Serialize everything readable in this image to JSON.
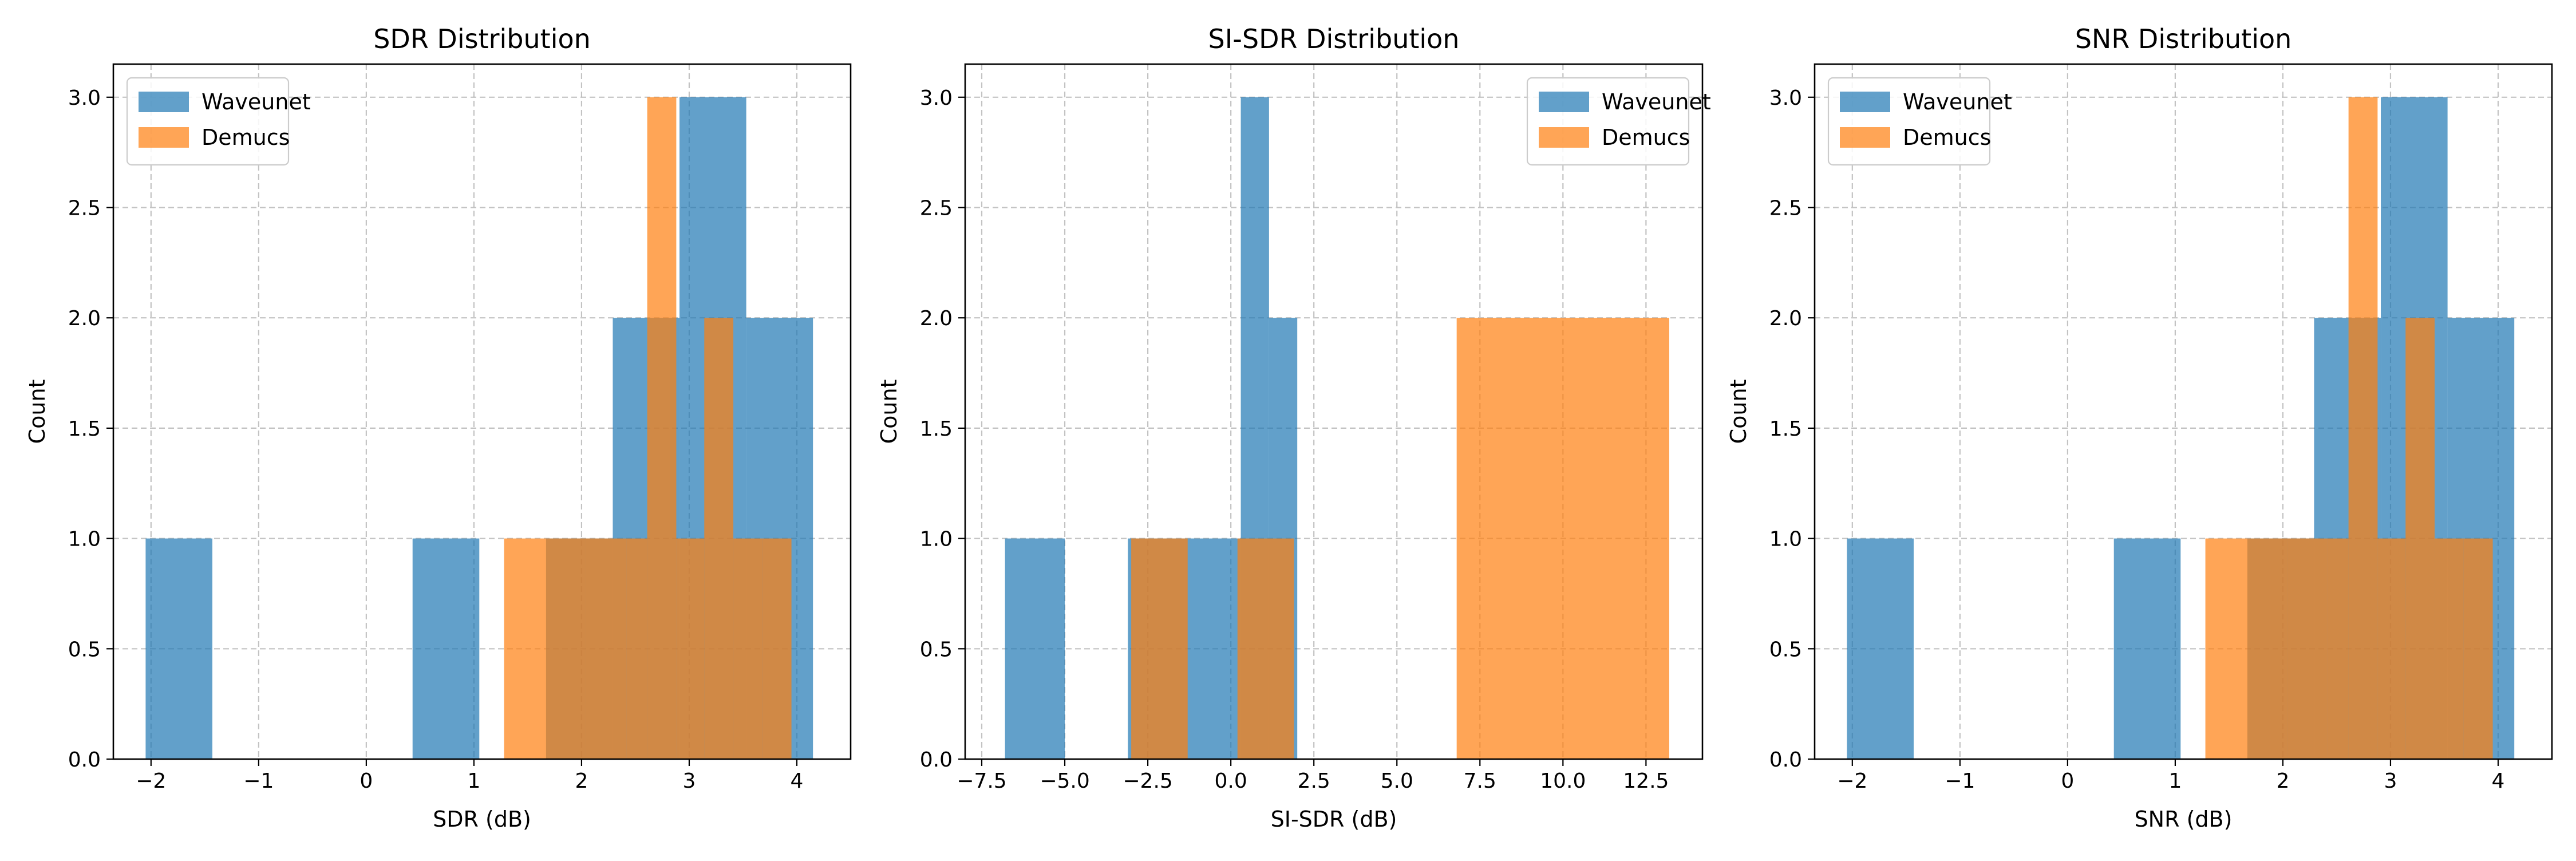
{
  "colors": {
    "waveunet": "#1f77b4",
    "demucs": "#ff7f0e",
    "grid": "#b0b0b0"
  },
  "chart_data": [
    {
      "type": "histogram",
      "title": "SDR Distribution",
      "xlabel": "SDR (dB)",
      "ylabel": "Count",
      "xlim": [
        -2.35,
        4.5
      ],
      "ylim": [
        0,
        3.15
      ],
      "xticks": [
        -2,
        -1,
        0,
        1,
        2,
        3,
        4
      ],
      "xtick_labels": [
        "−2",
        "−1",
        "0",
        "1",
        "2",
        "3",
        "4"
      ],
      "yticks": [
        0,
        0.5,
        1,
        1.5,
        2,
        2.5,
        3
      ],
      "ytick_labels": [
        "0.0",
        "0.5",
        "1.0",
        "1.5",
        "2.0",
        "2.5",
        "3.0"
      ],
      "grid": true,
      "legend_position": "upper left",
      "alpha": 0.7,
      "series": [
        {
          "name": "Waveunet",
          "color": "#1f77b4",
          "bins": [
            [
              -2.05,
              -1.43,
              1
            ],
            [
              -1.43,
              -0.81,
              0
            ],
            [
              -0.81,
              -0.19,
              0
            ],
            [
              -0.19,
              0.43,
              0
            ],
            [
              0.43,
              1.05,
              1
            ],
            [
              1.05,
              1.67,
              0
            ],
            [
              1.67,
              2.29,
              1
            ],
            [
              2.29,
              2.91,
              2
            ],
            [
              2.91,
              3.53,
              3
            ],
            [
              3.53,
              4.15,
              2
            ]
          ]
        },
        {
          "name": "Demucs",
          "color": "#ff7f0e",
          "bins": [
            [
              1.28,
              1.66,
              1
            ],
            [
              1.66,
              2.04,
              1
            ],
            [
              2.04,
              2.42,
              1
            ],
            [
              2.42,
              2.61,
              1
            ],
            [
              2.61,
              2.88,
              3
            ],
            [
              2.88,
              3.14,
              1
            ],
            [
              3.14,
              3.41,
              2
            ],
            [
              3.41,
              3.68,
              1
            ],
            [
              3.68,
              3.95,
              1
            ]
          ]
        }
      ]
    },
    {
      "type": "histogram",
      "title": "SI-SDR Distribution",
      "xlabel": "SI-SDR (dB)",
      "ylabel": "Count",
      "xlim": [
        -8.0,
        14.2
      ],
      "ylim": [
        0,
        3.15
      ],
      "xticks": [
        -7.5,
        -5.0,
        -2.5,
        0.0,
        2.5,
        5.0,
        7.5,
        10.0,
        12.5
      ],
      "xtick_labels": [
        "−7.5",
        "−5.0",
        "−2.5",
        "0.0",
        "2.5",
        "5.0",
        "7.5",
        "10.0",
        "12.5"
      ],
      "yticks": [
        0,
        0.5,
        1,
        1.5,
        2,
        2.5,
        3
      ],
      "ytick_labels": [
        "0.0",
        "0.5",
        "1.0",
        "1.5",
        "2.0",
        "2.5",
        "3.0"
      ],
      "grid": true,
      "legend_position": "upper right",
      "alpha": 0.7,
      "series": [
        {
          "name": "Waveunet",
          "color": "#1f77b4",
          "bins": [
            [
              -6.8,
              -5.0,
              1
            ],
            [
              -5.0,
              -3.1,
              0
            ],
            [
              -3.1,
              -1.4,
              1
            ],
            [
              -1.4,
              0.3,
              1
            ],
            [
              0.3,
              1.15,
              3
            ],
            [
              1.15,
              2.0,
              2
            ]
          ]
        },
        {
          "name": "Demucs",
          "color": "#ff7f0e",
          "bins": [
            [
              -3.0,
              -1.3,
              1
            ],
            [
              -1.3,
              0.2,
              0
            ],
            [
              0.2,
              1.9,
              1
            ],
            [
              1.9,
              6.8,
              0
            ],
            [
              6.8,
              13.2,
              2
            ]
          ]
        }
      ]
    },
    {
      "type": "histogram",
      "title": "SNR Distribution",
      "xlabel": "SNR (dB)",
      "ylabel": "Count",
      "xlim": [
        -2.35,
        4.5
      ],
      "ylim": [
        0,
        3.15
      ],
      "xticks": [
        -2,
        -1,
        0,
        1,
        2,
        3,
        4
      ],
      "xtick_labels": [
        "−2",
        "−1",
        "0",
        "1",
        "2",
        "3",
        "4"
      ],
      "yticks": [
        0,
        0.5,
        1,
        1.5,
        2,
        2.5,
        3
      ],
      "ytick_labels": [
        "0.0",
        "0.5",
        "1.0",
        "1.5",
        "2.0",
        "2.5",
        "3.0"
      ],
      "grid": true,
      "legend_position": "upper left",
      "alpha": 0.7,
      "series": [
        {
          "name": "Waveunet",
          "color": "#1f77b4",
          "bins": [
            [
              -2.05,
              -1.43,
              1
            ],
            [
              -1.43,
              -0.81,
              0
            ],
            [
              -0.81,
              -0.19,
              0
            ],
            [
              -0.19,
              0.43,
              0
            ],
            [
              0.43,
              1.05,
              1
            ],
            [
              1.05,
              1.67,
              0
            ],
            [
              1.67,
              2.29,
              1
            ],
            [
              2.29,
              2.91,
              2
            ],
            [
              2.91,
              3.53,
              3
            ],
            [
              3.53,
              4.15,
              2
            ]
          ]
        },
        {
          "name": "Demucs",
          "color": "#ff7f0e",
          "bins": [
            [
              1.28,
              1.66,
              1
            ],
            [
              1.66,
              2.04,
              1
            ],
            [
              2.04,
              2.42,
              1
            ],
            [
              2.42,
              2.61,
              1
            ],
            [
              2.61,
              2.88,
              3
            ],
            [
              2.88,
              3.14,
              1
            ],
            [
              3.14,
              3.41,
              2
            ],
            [
              3.41,
              3.68,
              1
            ],
            [
              3.68,
              3.95,
              1
            ]
          ]
        }
      ]
    }
  ]
}
